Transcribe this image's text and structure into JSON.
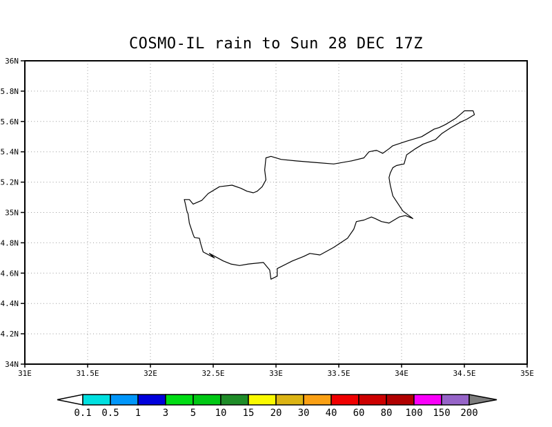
{
  "title": "COSMO-IL rain to Sun 28 DEC 17Z",
  "chart_data": {
    "type": "map",
    "title": "COSMO-IL rain to Sun 28 DEC 17Z",
    "region": "Cyprus",
    "projection": "latlon",
    "x_axis": {
      "min": 31,
      "max": 35,
      "ticks": [
        {
          "value": 31,
          "label": "31E"
        },
        {
          "value": 31.5,
          "label": "31.5E"
        },
        {
          "value": 32,
          "label": "32E"
        },
        {
          "value": 32.5,
          "label": "32.5E"
        },
        {
          "value": 33,
          "label": "33E"
        },
        {
          "value": 33.5,
          "label": "33.5E"
        },
        {
          "value": 34,
          "label": "34E"
        },
        {
          "value": 34.5,
          "label": "34.5E"
        },
        {
          "value": 35,
          "label": "35E"
        }
      ]
    },
    "y_axis": {
      "min": 34,
      "max": 36,
      "ticks": [
        {
          "value": 34,
          "label": "34N"
        },
        {
          "value": 34.2,
          "label": "34.2N"
        },
        {
          "value": 34.4,
          "label": "34.4N"
        },
        {
          "value": 34.6,
          "label": "34.6N"
        },
        {
          "value": 34.8,
          "label": "34.8N"
        },
        {
          "value": 35,
          "label": "35N"
        },
        {
          "value": 35.2,
          "label": "35.2N"
        },
        {
          "value": 35.4,
          "label": "35.4N"
        },
        {
          "value": 35.6,
          "label": "35.6N"
        },
        {
          "value": 35.8,
          "label": "35.8N"
        },
        {
          "value": 36,
          "label": "36N"
        }
      ]
    },
    "grid": {
      "style": "dotted",
      "color": "#999999",
      "shown": true
    },
    "frame_color": "#000000",
    "coastline_color": "#000000",
    "coastline": [
      [
        32.27,
        35.085
      ],
      [
        32.31,
        35.085
      ],
      [
        32.34,
        35.055
      ],
      [
        32.41,
        35.08
      ],
      [
        32.46,
        35.125
      ],
      [
        32.55,
        35.17
      ],
      [
        32.65,
        35.18
      ],
      [
        32.72,
        35.16
      ],
      [
        32.77,
        35.14
      ],
      [
        32.82,
        35.13
      ],
      [
        32.85,
        35.14
      ],
      [
        32.89,
        35.17
      ],
      [
        32.92,
        35.215
      ],
      [
        32.91,
        35.28
      ],
      [
        32.92,
        35.36
      ],
      [
        32.96,
        35.37
      ],
      [
        33.04,
        35.35
      ],
      [
        33.16,
        35.34
      ],
      [
        33.31,
        35.33
      ],
      [
        33.46,
        35.32
      ],
      [
        33.6,
        35.34
      ],
      [
        33.7,
        35.36
      ],
      [
        33.74,
        35.4
      ],
      [
        33.8,
        35.41
      ],
      [
        33.85,
        35.39
      ],
      [
        33.9,
        35.42
      ],
      [
        33.93,
        35.44
      ],
      [
        34.04,
        35.47
      ],
      [
        34.16,
        35.5
      ],
      [
        34.26,
        35.55
      ],
      [
        34.3,
        35.56
      ],
      [
        34.35,
        35.58
      ],
      [
        34.43,
        35.62
      ],
      [
        34.48,
        35.655
      ],
      [
        34.5,
        35.67
      ],
      [
        34.57,
        35.67
      ],
      [
        34.58,
        35.645
      ],
      [
        34.52,
        35.615
      ],
      [
        34.47,
        35.596
      ],
      [
        34.39,
        35.558
      ],
      [
        34.32,
        35.52
      ],
      [
        34.27,
        35.48
      ],
      [
        34.17,
        35.45
      ],
      [
        34.11,
        35.42
      ],
      [
        34.04,
        35.38
      ],
      [
        34.02,
        35.32
      ],
      [
        33.96,
        35.31
      ],
      [
        33.93,
        35.295
      ],
      [
        33.91,
        35.26
      ],
      [
        33.9,
        35.23
      ],
      [
        33.91,
        35.18
      ],
      [
        33.93,
        35.11
      ],
      [
        33.97,
        35.06
      ],
      [
        34.01,
        35.01
      ],
      [
        34.09,
        34.96
      ],
      [
        34.03,
        34.98
      ],
      [
        33.98,
        34.97
      ],
      [
        33.9,
        34.93
      ],
      [
        33.84,
        34.94
      ],
      [
        33.79,
        34.96
      ],
      [
        33.76,
        34.97
      ],
      [
        33.7,
        34.95
      ],
      [
        33.64,
        34.94
      ],
      [
        33.62,
        34.89
      ],
      [
        33.57,
        34.83
      ],
      [
        33.46,
        34.77
      ],
      [
        33.35,
        34.72
      ],
      [
        33.27,
        34.73
      ],
      [
        33.22,
        34.71
      ],
      [
        33.13,
        34.68
      ],
      [
        33.01,
        34.63
      ],
      [
        33.01,
        34.58
      ],
      [
        32.96,
        34.56
      ],
      [
        32.95,
        34.62
      ],
      [
        32.9,
        34.67
      ],
      [
        32.78,
        34.66
      ],
      [
        32.71,
        34.65
      ],
      [
        32.64,
        34.66
      ],
      [
        32.58,
        34.68
      ],
      [
        32.47,
        34.73
      ],
      [
        32.51,
        34.7
      ],
      [
        32.42,
        34.74
      ],
      [
        32.4,
        34.795
      ],
      [
        32.39,
        34.83
      ],
      [
        32.35,
        34.835
      ],
      [
        32.34,
        34.855
      ],
      [
        32.31,
        34.93
      ],
      [
        32.3,
        34.99
      ],
      [
        32.29,
        35.01
      ],
      [
        32.28,
        35.05
      ]
    ],
    "colorbar": {
      "levels": [
        "0.1",
        "0.5",
        "1",
        "3",
        "5",
        "10",
        "15",
        "20",
        "30",
        "40",
        "60",
        "80",
        "100",
        "150",
        "200"
      ],
      "segment_colors": [
        "#00e0e0",
        "#0096fa",
        "#0000dc",
        "#00dc14",
        "#00c814",
        "#1e8c28",
        "#fafa00",
        "#dcb414",
        "#faa014",
        "#f00000",
        "#cd0000",
        "#b00000",
        "#fa00fa",
        "#9664c8"
      ],
      "below_color": "#ffffff",
      "above_color": "#7d7d7d",
      "border_color": "#000000"
    }
  }
}
